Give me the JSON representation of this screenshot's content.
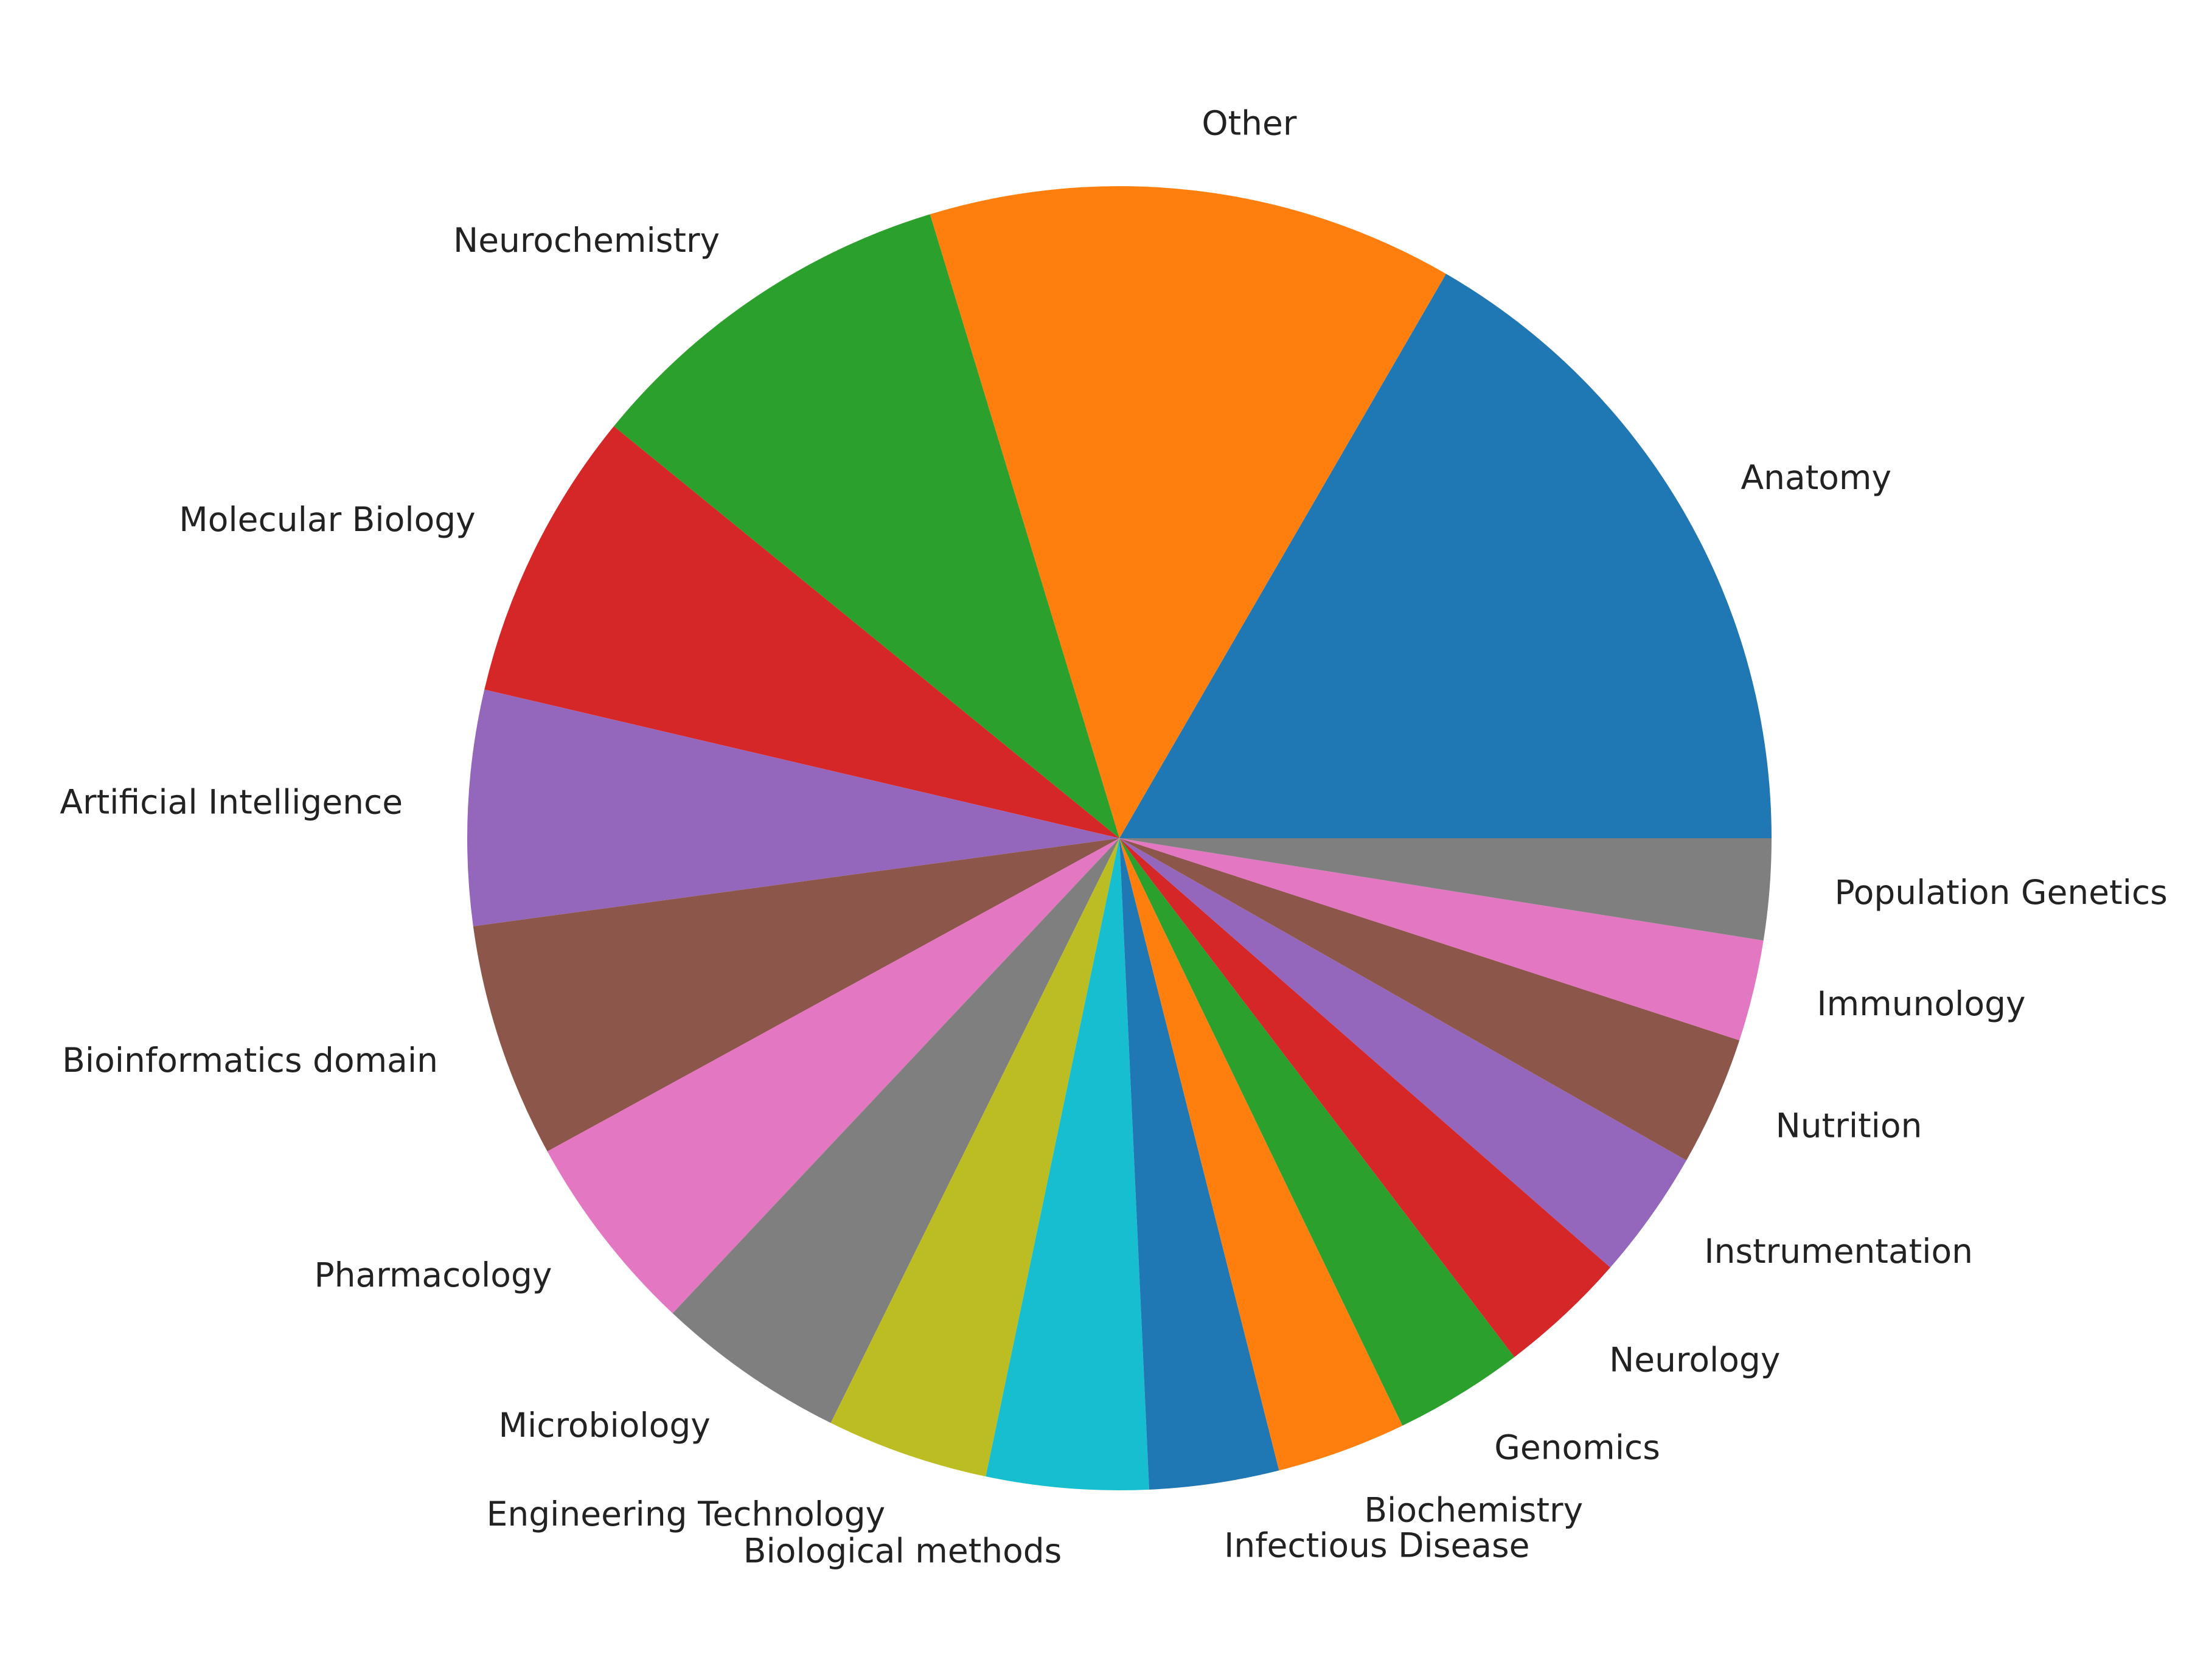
{
  "chart_data": {
    "type": "pie",
    "title": "",
    "start_angle": 0,
    "direction": "counterclockwise",
    "slices": [
      {
        "label": "Anatomy",
        "value": 16.6,
        "color": "#1f77b4"
      },
      {
        "label": "Other",
        "value": 13.0,
        "color": "#ff7f0e"
      },
      {
        "label": "Neurochemistry",
        "value": 9.4,
        "color": "#2ca02c"
      },
      {
        "label": "Molecular Biology",
        "value": 7.2,
        "color": "#d62728"
      },
      {
        "label": "Artificial Intelligence",
        "value": 5.8,
        "color": "#9467bd"
      },
      {
        "label": "Bioinformatics domain",
        "value": 5.8,
        "color": "#8c564b"
      },
      {
        "label": "Pharmacology",
        "value": 5.0,
        "color": "#e377c2"
      },
      {
        "label": "Microbiology",
        "value": 4.7,
        "color": "#7f7f7f"
      },
      {
        "label": "Engineering Technology",
        "value": 4.0,
        "color": "#bcbd22"
      },
      {
        "label": "Biological methods",
        "value": 4.0,
        "color": "#17becf"
      },
      {
        "label": "Infectious Disease",
        "value": 3.2,
        "color": "#1f77b4"
      },
      {
        "label": "Biochemistry",
        "value": 3.2,
        "color": "#ff7f0e"
      },
      {
        "label": "Genomics",
        "value": 3.2,
        "color": "#2ca02c"
      },
      {
        "label": "Neurology",
        "value": 3.2,
        "color": "#d62728"
      },
      {
        "label": "Instrumentation",
        "value": 3.2,
        "color": "#9467bd"
      },
      {
        "label": "Nutrition",
        "value": 3.2,
        "color": "#8c564b"
      },
      {
        "label": "Immunology",
        "value": 2.5,
        "color": "#e377c2"
      },
      {
        "label": "Population Genetics",
        "value": 2.5,
        "color": "#7f7f7f"
      }
    ]
  }
}
